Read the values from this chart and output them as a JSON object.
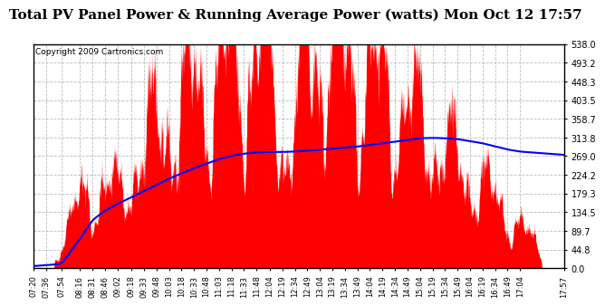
{
  "title": "Total PV Panel Power & Running Average Power (watts) Mon Oct 12 17:57",
  "copyright": "Copyright 2009 Cartronics.com",
  "ymin": 0.0,
  "ymax": 538.0,
  "yticks": [
    0.0,
    44.8,
    89.7,
    134.5,
    179.3,
    224.2,
    269.0,
    313.8,
    358.7,
    403.5,
    448.3,
    493.2,
    538.0
  ],
  "ytick_labels": [
    "0.0",
    "44.8",
    "89.7",
    "134.5",
    "179.3",
    "224.2",
    "269.0",
    "313.8",
    "358.7",
    "403.5",
    "448.3",
    "493.2",
    "538.0"
  ],
  "fill_color": "#FF0000",
  "line_color": "#0000FF",
  "background_color": "#FFFFFF",
  "grid_color": "#BBBBBB",
  "title_fontsize": 11,
  "copyright_fontsize": 6.5,
  "xtick_labels": [
    "07:20",
    "07:36",
    "07:54",
    "08:16",
    "08:31",
    "08:46",
    "09:02",
    "09:18",
    "09:33",
    "09:48",
    "10:03",
    "10:18",
    "10:33",
    "10:48",
    "11:03",
    "11:18",
    "11:33",
    "11:48",
    "12:04",
    "12:19",
    "12:34",
    "12:49",
    "13:04",
    "13:19",
    "13:34",
    "13:49",
    "14:04",
    "14:19",
    "14:34",
    "14:49",
    "15:04",
    "15:19",
    "15:34",
    "15:49",
    "16:04",
    "16:19",
    "16:34",
    "16:49",
    "17:04",
    "17:57"
  ]
}
